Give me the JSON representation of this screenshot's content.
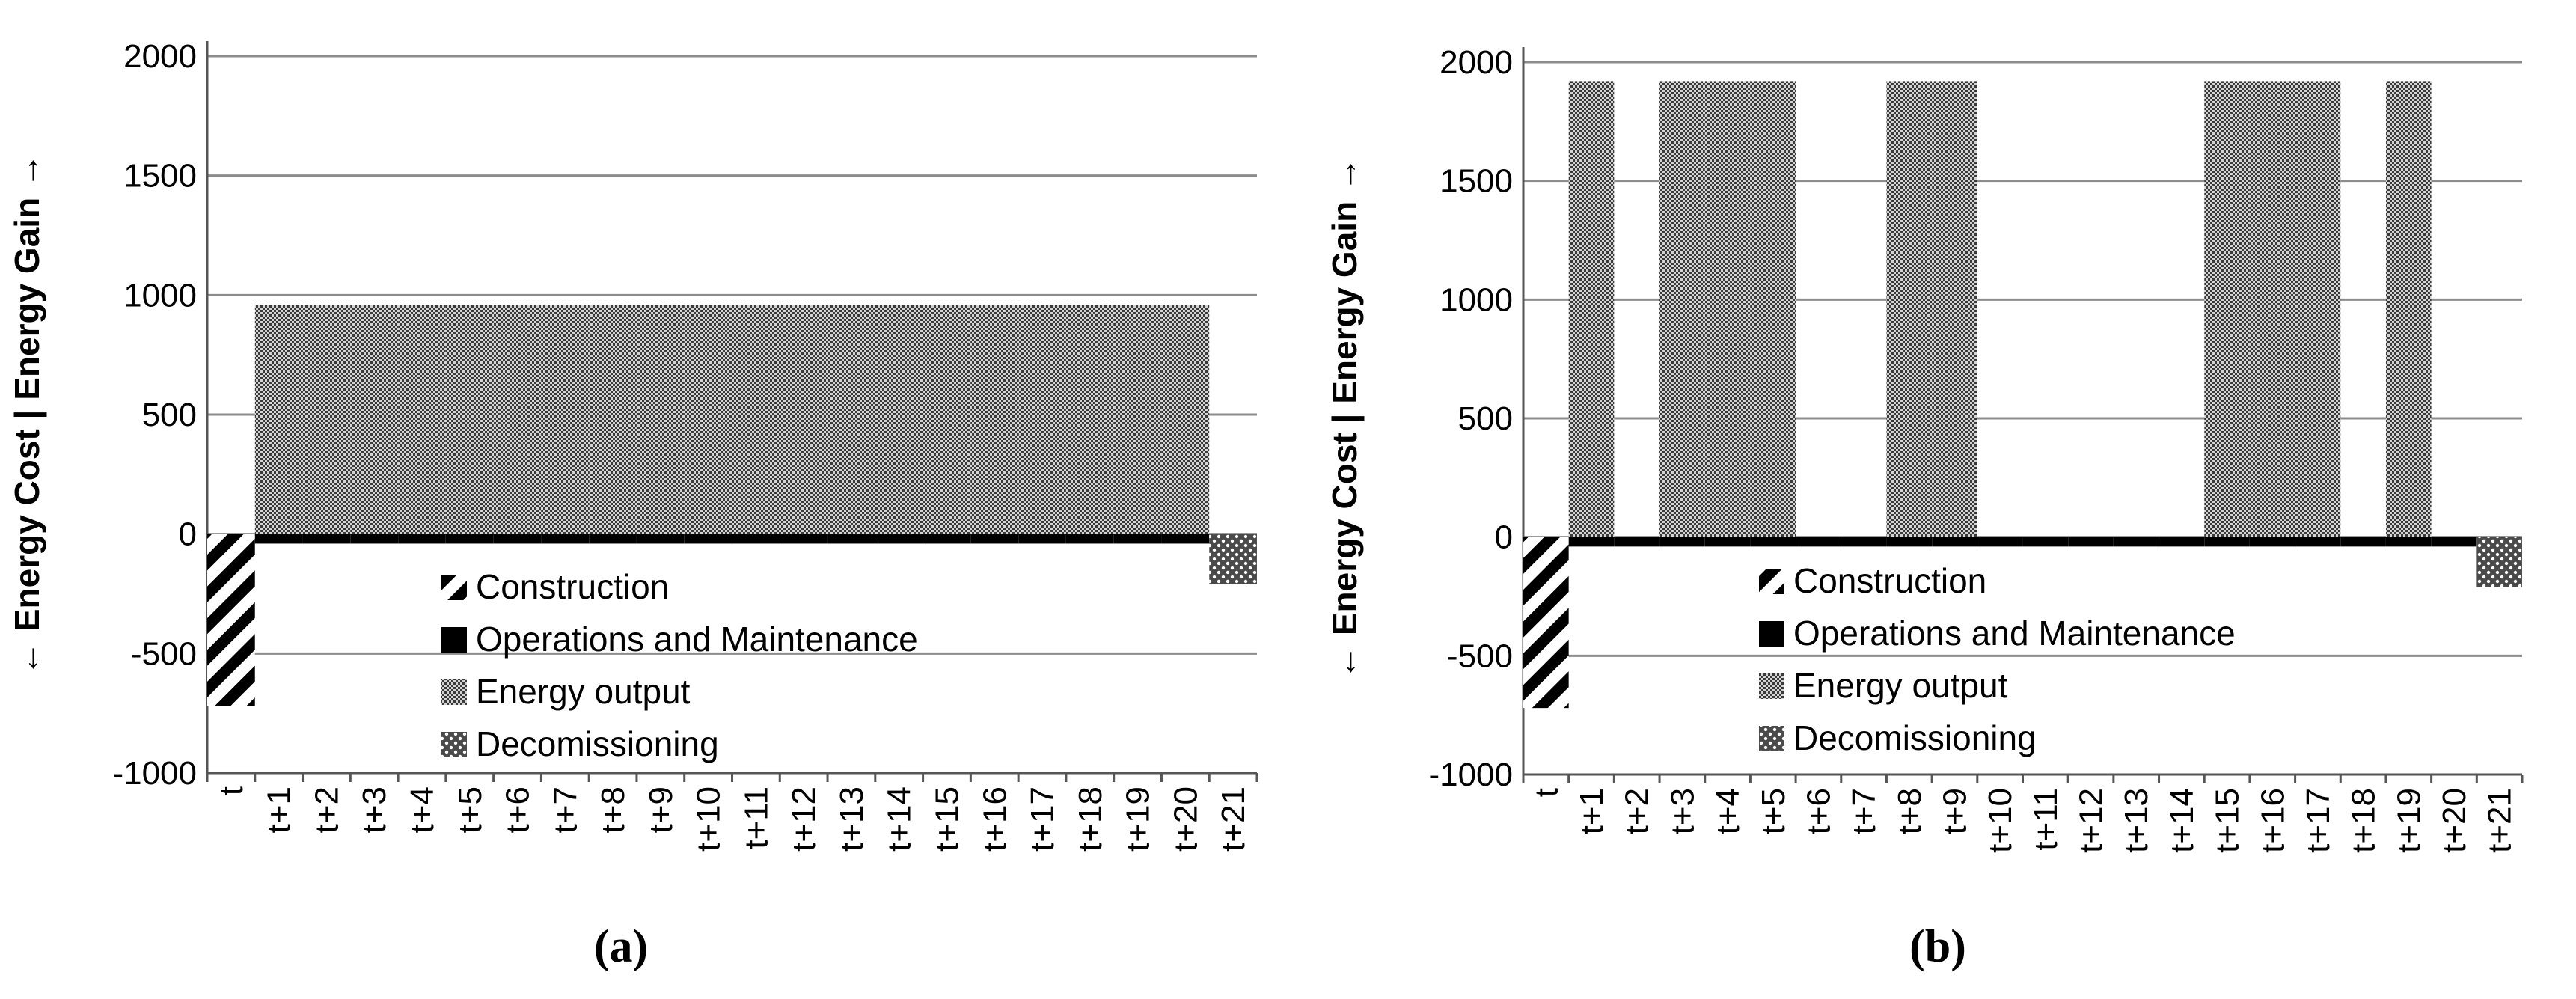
{
  "chart_data": [
    {
      "type": "bar",
      "panel_label": "(a)",
      "ylabel": "← Energy Cost   |   Energy Gain →",
      "ylim": [
        -1000,
        2000
      ],
      "yticks": [
        -1000,
        -500,
        0,
        500,
        1000,
        1500,
        2000
      ],
      "grid": true,
      "legend_position": "bottom-center",
      "categories": [
        "t",
        "t+1",
        "t+2",
        "t+3",
        "t+4",
        "t+5",
        "t+6",
        "t+7",
        "t+8",
        "t+9",
        "t+10",
        "t+11",
        "t+12",
        "t+13",
        "t+14",
        "t+15",
        "t+16",
        "t+17",
        "t+18",
        "t+19",
        "t+20",
        "t+21"
      ],
      "series": [
        {
          "name": "Construction",
          "pattern": "diagonal-stripes",
          "values": [
            -720,
            0,
            0,
            0,
            0,
            0,
            0,
            0,
            0,
            0,
            0,
            0,
            0,
            0,
            0,
            0,
            0,
            0,
            0,
            0,
            0,
            0
          ]
        },
        {
          "name": "Operations and Maintenance",
          "pattern": "solid-black",
          "values": [
            0,
            -40,
            -40,
            -40,
            -40,
            -40,
            -40,
            -40,
            -40,
            -40,
            -40,
            -40,
            -40,
            -40,
            -40,
            -40,
            -40,
            -40,
            -40,
            -40,
            -40,
            0
          ]
        },
        {
          "name": "Energy output",
          "pattern": "checker",
          "values": [
            0,
            960,
            960,
            960,
            960,
            960,
            960,
            960,
            960,
            960,
            960,
            960,
            960,
            960,
            960,
            960,
            960,
            960,
            960,
            960,
            960,
            0
          ]
        },
        {
          "name": "Decomissioning",
          "pattern": "dots",
          "values": [
            0,
            0,
            0,
            0,
            0,
            0,
            0,
            0,
            0,
            0,
            0,
            0,
            0,
            0,
            0,
            0,
            0,
            0,
            0,
            0,
            0,
            -210
          ]
        }
      ]
    },
    {
      "type": "bar",
      "panel_label": "(b)",
      "ylabel": "← Energy Cost   |   Energy Gain →",
      "ylim": [
        -1000,
        2000
      ],
      "yticks": [
        -1000,
        -500,
        0,
        500,
        1000,
        1500,
        2000
      ],
      "grid": true,
      "legend_position": "bottom-center",
      "categories": [
        "t",
        "t+1",
        "t+2",
        "t+3",
        "t+4",
        "t+5",
        "t+6",
        "t+7",
        "t+8",
        "t+9",
        "t+10",
        "t+11",
        "t+12",
        "t+13",
        "t+14",
        "t+15",
        "t+16",
        "t+17",
        "t+18",
        "t+19",
        "t+20",
        "t+21"
      ],
      "series": [
        {
          "name": "Construction",
          "pattern": "diagonal-stripes",
          "values": [
            -720,
            0,
            0,
            0,
            0,
            0,
            0,
            0,
            0,
            0,
            0,
            0,
            0,
            0,
            0,
            0,
            0,
            0,
            0,
            0,
            0,
            0
          ]
        },
        {
          "name": "Operations and Maintenance",
          "pattern": "solid-black",
          "values": [
            0,
            -40,
            -40,
            -40,
            -40,
            -40,
            -40,
            -40,
            -40,
            -40,
            -40,
            -40,
            -40,
            -40,
            -40,
            -40,
            -40,
            -40,
            -40,
            -40,
            -40,
            0
          ]
        },
        {
          "name": "Energy output",
          "pattern": "checker",
          "values": [
            0,
            1920,
            0,
            1920,
            1920,
            1920,
            0,
            0,
            1920,
            1920,
            0,
            0,
            0,
            0,
            0,
            1920,
            1920,
            1920,
            0,
            1920,
            0,
            0
          ]
        },
        {
          "name": "Decomissioning",
          "pattern": "dots",
          "values": [
            0,
            0,
            0,
            0,
            0,
            0,
            0,
            0,
            0,
            0,
            0,
            0,
            0,
            0,
            0,
            0,
            0,
            0,
            0,
            0,
            0,
            -210
          ]
        }
      ]
    }
  ]
}
